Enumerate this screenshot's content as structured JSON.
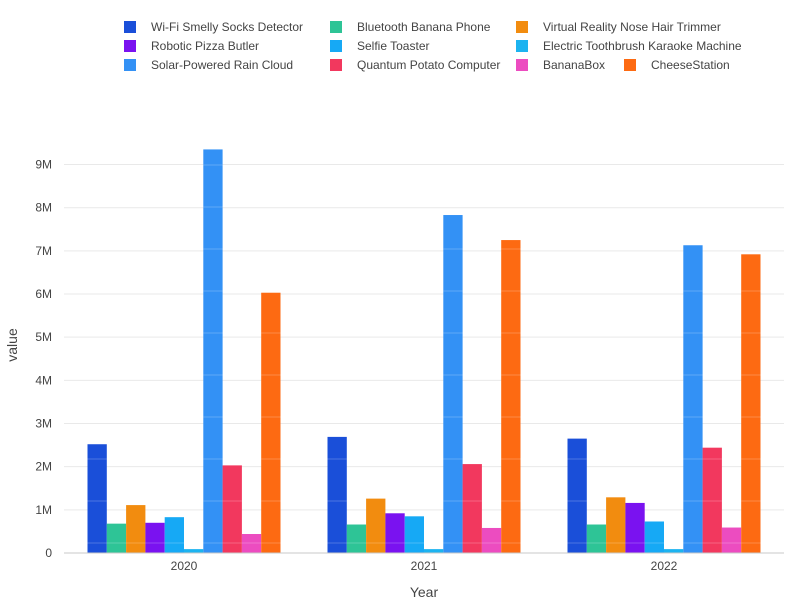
{
  "chart_data": {
    "type": "bar",
    "xlabel": "Year",
    "ylabel": "value",
    "categories": [
      "2020",
      "2021",
      "2022"
    ],
    "y_ticks": [
      0,
      1000000,
      2000000,
      3000000,
      4000000,
      5000000,
      6000000,
      7000000,
      8000000,
      9000000
    ],
    "y_tick_labels": [
      "0",
      "1M",
      "2M",
      "3M",
      "4M",
      "5M",
      "6M",
      "7M",
      "8M",
      "9M"
    ],
    "ylim": [
      0,
      9800000
    ],
    "grid": true,
    "legend_position": "top",
    "series": [
      {
        "name": "Wi-Fi Smelly Socks Detector",
        "color": "#1a4fd9",
        "values": [
          2520000,
          2690000,
          2650000
        ]
      },
      {
        "name": "Bluetooth Banana Phone",
        "color": "#2ec496",
        "values": [
          680000,
          660000,
          660000
        ]
      },
      {
        "name": "Virtual Reality Nose Hair Trimmer",
        "color": "#f28c0f",
        "values": [
          1110000,
          1260000,
          1290000
        ]
      },
      {
        "name": "Robotic Pizza Butler",
        "color": "#7a12f0",
        "values": [
          700000,
          920000,
          1160000
        ]
      },
      {
        "name": "Selfie Toaster",
        "color": "#16a9f5",
        "values": [
          830000,
          850000,
          730000
        ]
      },
      {
        "name": "Electric Toothbrush Karaoke Machine",
        "color": "#1cb3f0",
        "values": [
          90000,
          90000,
          90000
        ]
      },
      {
        "name": "Solar-Powered Rain Cloud",
        "color": "#3391f5",
        "values": [
          9350000,
          7830000,
          7130000
        ]
      },
      {
        "name": "Quantum Potato Computer",
        "color": "#f2385e",
        "values": [
          2030000,
          2060000,
          2440000
        ]
      },
      {
        "name": "BananaBox",
        "color": "#ec4cc0",
        "values": [
          440000,
          580000,
          590000
        ]
      },
      {
        "name": "CheeseStation",
        "color": "#fd6a12",
        "values": [
          6030000,
          7250000,
          6920000
        ]
      }
    ]
  }
}
